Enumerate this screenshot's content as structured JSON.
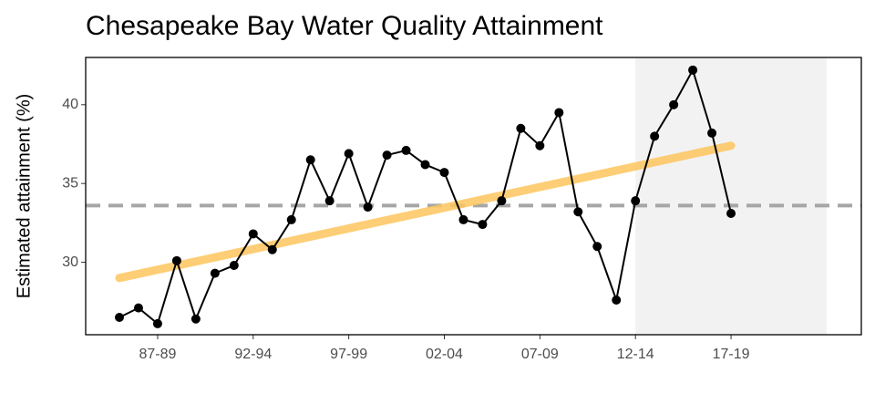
{
  "chart_data": {
    "type": "line",
    "title": "Chesapeake Bay Water Quality Attainment",
    "y_label": "Estimated attainment (%)",
    "categories": [
      null,
      null,
      "87-89",
      null,
      null,
      null,
      null,
      "92-94",
      null,
      null,
      null,
      null,
      "97-99",
      null,
      null,
      null,
      null,
      "02-04",
      null,
      null,
      null,
      null,
      "07-09",
      null,
      null,
      null,
      null,
      "12-14",
      null,
      null,
      null,
      null,
      "17-19"
    ],
    "series": [
      {
        "color": "#000000",
        "values": [
          26.5,
          27.1,
          26.1,
          30.1,
          26.4,
          29.3,
          29.8,
          31.8,
          30.8,
          32.7,
          36.5,
          33.9,
          36.9,
          33.5,
          36.8,
          37.1,
          36.2,
          35.7,
          32.7,
          32.4,
          33.9,
          38.5,
          37.4,
          39.5,
          33.2,
          31.0,
          27.6,
          33.9,
          38.0,
          40.0,
          42.2,
          38.2,
          33.1
        ]
      }
    ],
    "trend_line": {
      "color": "#fdc65e",
      "values": [
        29.0,
        37.4
      ]
    },
    "reference_line": {
      "color": "#a6a6a6",
      "value": 33.6
    },
    "highlight_from": "12-14",
    "ylim": [
      25.4,
      43.0
    ],
    "yticks": [
      30,
      35,
      40
    ]
  }
}
